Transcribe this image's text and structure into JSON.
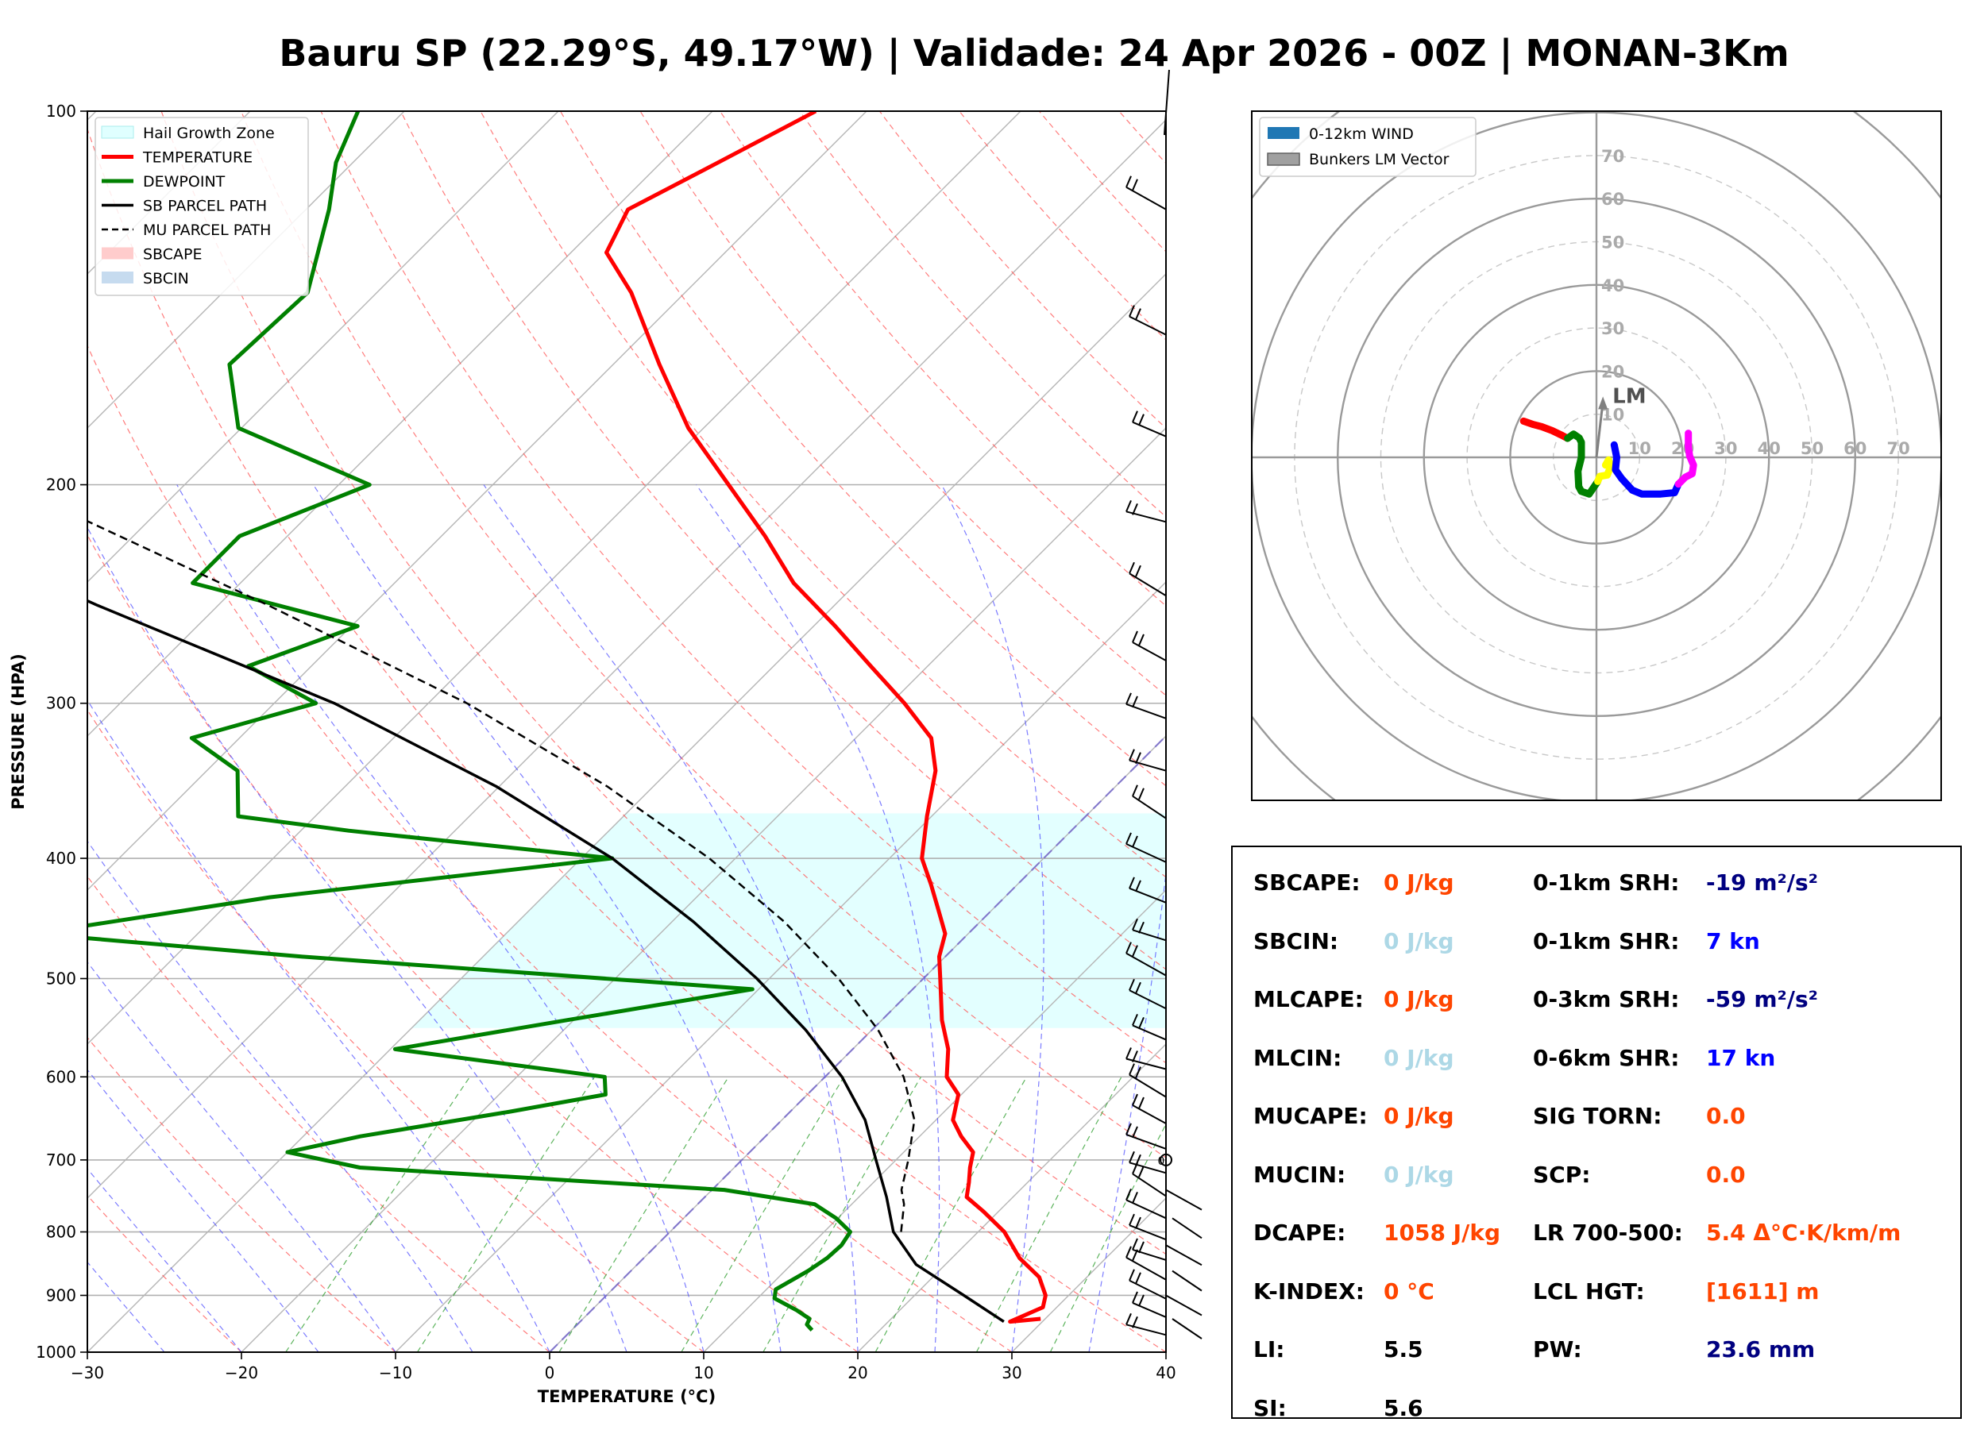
{
  "title": "Bauru SP (22.29°S, 49.17°W) | Validade: 24 Apr 2026 - 00Z | MONAN-3Km",
  "colors": {
    "temperature": "#ff0000",
    "dewpoint": "#008000",
    "parcel": "#000000",
    "hail_zone": "#e0ffff",
    "cape_value": "#ff4500",
    "cin_value": "#add8e6",
    "shear_value": "#0000ff",
    "srh_value": "#000080"
  },
  "chart_data": [
    {
      "type": "line",
      "subtype": "skew-t log-p",
      "xlabel": "TEMPERATURE (°C)",
      "ylabel": "PRESSURE (HPA)",
      "xlim": [
        -30,
        40
      ],
      "ylim": [
        1000,
        100
      ],
      "y_scale": "log",
      "grid": true,
      "x_ticks": [
        "−30",
        "−20",
        "−10",
        "0",
        "10",
        "20",
        "30",
        "40"
      ],
      "y_ticks": [
        "100",
        "200",
        "300",
        "400",
        "500",
        "600",
        "700",
        "800",
        "900",
        "1000"
      ],
      "legend_position": "top-left",
      "legend": [
        "Hail Growth Zone",
        "TEMPERATURE",
        "DEWPOINT",
        "SB PARCEL PATH",
        "MU PARCEL PATH",
        "SBCAPE",
        "SBCIN"
      ],
      "hail_growth_zone": {
        "p_bottom": 548,
        "p_top": 368,
        "t_min": -30,
        "t_max": 20
      },
      "series": [
        {
          "name": "TEMPERATURE",
          "color": "#ff0000",
          "width": 5,
          "dash": "",
          "p": [
            940,
            945,
            920,
            900,
            870,
            840,
            800,
            770,
            750,
            730,
            710,
            690,
            670,
            650,
            620,
            600,
            570,
            540,
            500,
            480,
            460,
            440,
            420,
            400,
            370,
            340,
            320,
            300,
            280,
            260,
            240,
            220,
            200,
            180,
            160,
            140,
            130,
            120,
            110,
            100
          ],
          "t": [
            29.7,
            27.9,
            29.1,
            28.5,
            26.9,
            24.4,
            21.7,
            19.0,
            17.0,
            16.2,
            15.3,
            14.5,
            12.7,
            11.1,
            9.8,
            7.9,
            6.2,
            3.9,
            1.1,
            -0.4,
            -1.5,
            -3.5,
            -5.6,
            -7.9,
            -10.3,
            -12.7,
            -15.1,
            -19.1,
            -23.7,
            -28.6,
            -34.1,
            -39.0,
            -44.7,
            -51.0,
            -57.0,
            -63.5,
            -67.7,
            -69.1,
            -66.3,
            -63.3
          ]
        },
        {
          "name": "DEWPOINT",
          "color": "#008000",
          "width": 5,
          "dash": "",
          "p": [
            960,
            950,
            940,
            925,
            905,
            890,
            860,
            840,
            820,
            800,
            780,
            760,
            740,
            710,
            690,
            670,
            640,
            620,
            600,
            570,
            540,
            510,
            480,
            460,
            430,
            400,
            380,
            370,
            340,
            320,
            300,
            280,
            260,
            240,
            220,
            200,
            180,
            160,
            140,
            120,
            110,
            100
          ],
          "t": [
            15.6,
            14.9,
            14.7,
            13.3,
            11.1,
            10.6,
            11.5,
            11.9,
            12.0,
            11.7,
            9.9,
            7.6,
            0.8,
            -24.3,
            -30.0,
            -26.3,
            -18.2,
            -13.1,
            -14.3,
            -29.7,
            -20.4,
            -10.4,
            -41.8,
            -60.6,
            -47.7,
            -28.0,
            -46.9,
            -55.0,
            -58.0,
            -63.1,
            -57.3,
            -64.1,
            -59.6,
            -73.1,
            -73.1,
            -68.0,
            -80.2,
            -84.9,
            -84.5,
            -88.5,
            -91.1,
            -93.0
          ]
        },
        {
          "name": "SB PARCEL PATH",
          "color": "#000000",
          "width": 3.5,
          "dash": "",
          "p": [
            945,
            900,
            850,
            800,
            750,
            700,
            650,
            600,
            550,
            500,
            450,
            400,
            350,
            300,
            250,
            200,
            170,
            140,
            120,
            100
          ],
          "t": [
            27.5,
            23.2,
            18.1,
            14.5,
            11.8,
            8.7,
            5.4,
            1.1,
            -4.3,
            -10.8,
            -18.6,
            -28.0,
            -40.2,
            -56.1,
            -77.9,
            -103.0,
            -119.8,
            -139.0,
            -151.9,
            -163.9
          ]
        },
        {
          "name": "MU PARCEL PATH",
          "color": "#000000",
          "width": 2.5,
          "dash": "10,6",
          "p": [
            800,
            760,
            740,
            700,
            650,
            600,
            550,
            500,
            450,
            400,
            350,
            300,
            250,
            200,
            170,
            140,
            120,
            100
          ],
          "t": [
            15.0,
            13.4,
            12.3,
            10.8,
            8.6,
            5.1,
            0.4,
            -5.5,
            -12.7,
            -21.7,
            -33.0,
            -47.5,
            -66.8,
            -91.4,
            -107.5,
            -126.7,
            -139.8,
            -152.9
          ]
        }
      ],
      "wind_barbs": {
        "side": "right",
        "count": 28
      },
      "bottom_annotation": "0"
    },
    {
      "type": "line",
      "subtype": "hodograph",
      "rings": [
        10,
        20,
        30,
        40,
        50,
        60,
        70
      ],
      "ring_labels": [
        "10",
        "20",
        "30",
        "40",
        "50",
        "60",
        "70"
      ],
      "legend_position": "top-left",
      "legend": [
        "0-12km WIND",
        "Bunkers LM Vector"
      ],
      "annotation": "LM",
      "lm_vector": {
        "u": 1.5,
        "v": 13.0
      },
      "series": [
        {
          "name": "0-3km",
          "color": "#ff0000",
          "u": [
            -16.9,
            -14.6,
            -12.7,
            -10.3,
            -8.0,
            -6.7
          ],
          "v": [
            8.4,
            7.6,
            7.1,
            6.2,
            5.1,
            4.4
          ]
        },
        {
          "name": "3-6km",
          "color": "#008000",
          "u": [
            -6.7,
            -5.3,
            -4.0,
            -3.5,
            -3.5,
            -4.3,
            -4.1,
            -3.5,
            -1.7,
            0.3
          ],
          "v": [
            4.4,
            5.4,
            4.5,
            3.5,
            0.0,
            -3.2,
            -6.8,
            -7.9,
            -8.5,
            -5.6
          ]
        },
        {
          "name": "6-9km",
          "color": "#ffff00",
          "u": [
            0.3,
            0.8,
            2.5,
            3.3,
            2.8,
            2.1
          ],
          "v": [
            -5.6,
            -4.4,
            -4.1,
            -2.1,
            -0.6,
            -1.8
          ]
        },
        {
          "name": "9-12km",
          "color": "#0000ff",
          "u": [
            4.1,
            4.7,
            4.4,
            5.9,
            8.3,
            10.5,
            14.9,
            18.1,
            19.0
          ],
          "v": [
            2.9,
            0.0,
            -2.9,
            -5.0,
            -7.6,
            -8.5,
            -8.5,
            -8.2,
            -6.2
          ]
        },
        {
          "name": "12km+",
          "color": "#ff00ff",
          "u": [
            19.0,
            20.6,
            22.2,
            22.5,
            21.6,
            21.3,
            21.3
          ],
          "v": [
            -6.2,
            -4.6,
            -3.8,
            -1.8,
            0.3,
            2.4,
            5.6
          ]
        }
      ]
    }
  ],
  "stats": [
    {
      "label": "SBCAPE:",
      "value": "0 J/kg",
      "color": "#ff4500"
    },
    {
      "label": "SBCIN:",
      "value": "0 J/kg",
      "color": "#add8e6"
    },
    {
      "label": "MLCAPE:",
      "value": "0 J/kg",
      "color": "#ff4500"
    },
    {
      "label": "MLCIN:",
      "value": "0 J/kg",
      "color": "#add8e6"
    },
    {
      "label": "MUCAPE:",
      "value": "0 J/kg",
      "color": "#ff4500"
    },
    {
      "label": "MUCIN:",
      "value": "0 J/kg",
      "color": "#add8e6"
    },
    {
      "label": "DCAPE:",
      "value": "1058 J/kg",
      "color": "#ff4500"
    },
    {
      "label": "K-INDEX:",
      "value": "0 °C",
      "color": "#ff4500"
    },
    {
      "label": "LI:",
      "value": "5.5",
      "color": "#000000"
    },
    {
      "label": "SI:",
      "value": "5.6",
      "color": "#000000"
    },
    {
      "label": "0-1km SRH:",
      "value": "-19 m²/s²",
      "color": "#000080"
    },
    {
      "label": "0-1km SHR:",
      "value": "7 kn",
      "color": "#0000ff"
    },
    {
      "label": "0-3km SRH:",
      "value": "-59 m²/s²",
      "color": "#000080"
    },
    {
      "label": "0-6km SHR:",
      "value": "17 kn",
      "color": "#0000ff"
    },
    {
      "label": "SIG TORN:",
      "value": "0.0",
      "color": "#ff4500"
    },
    {
      "label": "SCP:",
      "value": "0.0",
      "color": "#ff4500"
    },
    {
      "label": "LR 700-500:",
      "value": "5.4 Δ°C·K/km/m",
      "color": "#ff4500"
    },
    {
      "label": "LCL HGT:",
      "value": "[1611] m",
      "color": "#ff4500"
    },
    {
      "label": "PW:",
      "value": "23.6 mm",
      "color": "#000080"
    }
  ]
}
